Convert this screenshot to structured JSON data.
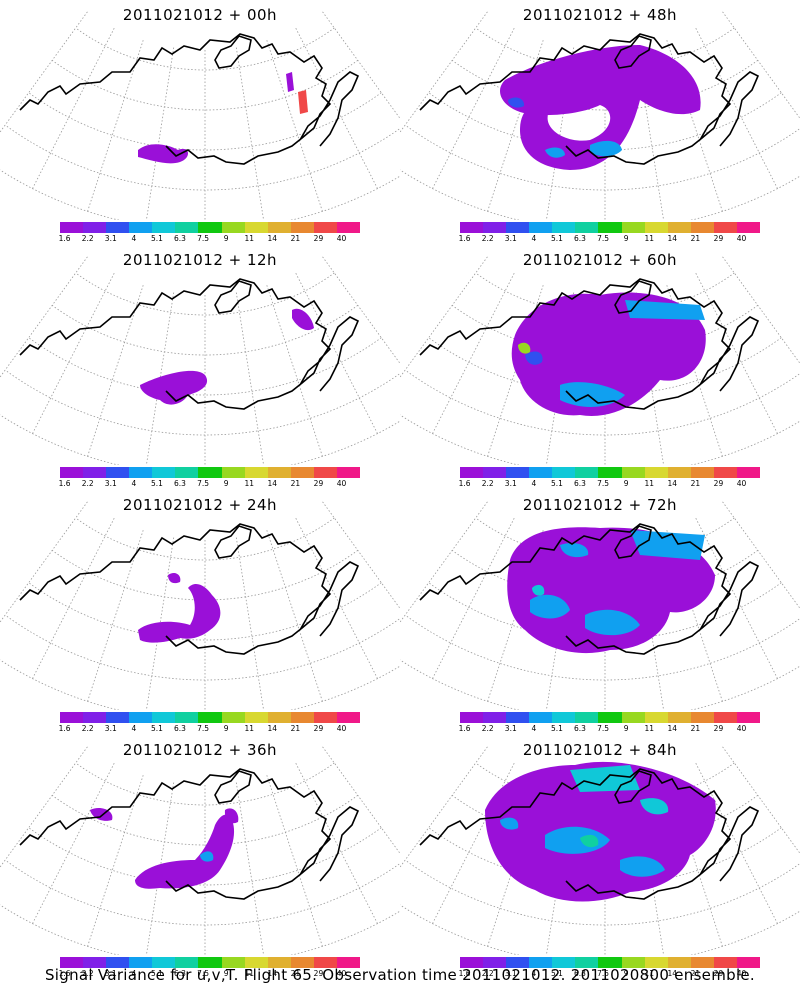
{
  "palette": [
    "#9a10d8",
    "#8020e8",
    "#3050f0",
    "#10a0f0",
    "#10c8d8",
    "#10d0a0",
    "#10c810",
    "#98d820",
    "#d8d830",
    "#e0b030",
    "#e88830",
    "#f04848",
    "#f01888"
  ],
  "colorbar_labels": [
    "1.6",
    "2.2",
    "3.1",
    "4",
    "5.1",
    "6.3",
    "7.5",
    "9",
    "11",
    "14",
    "21",
    "29",
    "40"
  ],
  "panels": [
    {
      "id": "p00",
      "title": "2011021012 + 00h",
      "coverage": "small plume"
    },
    {
      "id": "p48",
      "title": "2011021012 + 48h",
      "coverage": "broad ring"
    },
    {
      "id": "p12",
      "title": "2011021012 + 12h",
      "coverage": "elongated plume"
    },
    {
      "id": "p60",
      "title": "2011021012 + 60h",
      "coverage": "broad with hole"
    },
    {
      "id": "p24",
      "title": "2011021012 + 24h",
      "coverage": "curved plume"
    },
    {
      "id": "p72",
      "title": "2011021012 + 72h",
      "coverage": "broad spread"
    },
    {
      "id": "p36",
      "title": "2011021012 + 36h",
      "coverage": "curved plume larger"
    },
    {
      "id": "p84",
      "title": "2011021012 + 84h",
      "coverage": "widest spread"
    }
  ],
  "footer": "Signal Variance for u,v,T. Flight 65. Observation time 2011021012. 2011020800 ensemble."
}
